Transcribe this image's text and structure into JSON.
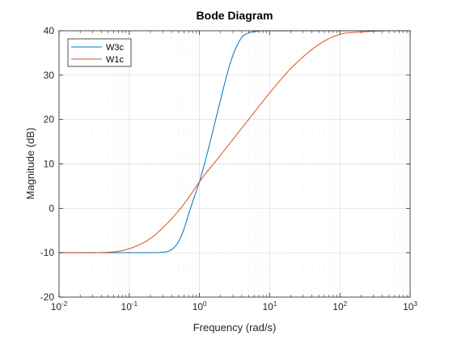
{
  "chart_data": {
    "type": "line",
    "title": "Bode Diagram",
    "xlabel": "Frequency  (rad/s)",
    "ylabel": "Magnitude (dB)",
    "xscale": "log",
    "xlim": [
      0.01,
      1000
    ],
    "ylim": [
      -20,
      40
    ],
    "yticks": [
      -20,
      -10,
      0,
      10,
      20,
      30,
      40
    ],
    "xtick_labels": [
      {
        "base": "10",
        "exp": "-2"
      },
      {
        "base": "10",
        "exp": "-1"
      },
      {
        "base": "10",
        "exp": "0"
      },
      {
        "base": "10",
        "exp": "1"
      },
      {
        "base": "10",
        "exp": "2"
      },
      {
        "base": "10",
        "exp": "3"
      }
    ],
    "grid": true,
    "legend_position": "top-left",
    "series": [
      {
        "name": "W3c",
        "color": "#0072BD",
        "x": [
          0.01,
          0.1,
          0.2,
          0.3,
          0.4,
          0.5,
          0.6,
          0.7,
          0.8,
          1.0,
          1.2,
          1.5,
          2,
          2.5,
          3,
          4,
          5,
          6,
          8,
          10,
          100,
          1000
        ],
        "y": [
          -10,
          -10,
          -10,
          -9.9,
          -9.3,
          -7.6,
          -4.7,
          -1.3,
          1.5,
          6,
          10.5,
          16.5,
          24.5,
          30.5,
          34.5,
          38.5,
          39.5,
          39.8,
          40,
          40,
          40,
          40
        ]
      },
      {
        "name": "W1c",
        "color": "#D95319",
        "x": [
          0.01,
          0.02,
          0.05,
          0.1,
          0.2,
          0.3,
          0.5,
          0.7,
          1.0,
          2,
          5,
          10,
          20,
          50,
          100,
          200,
          500,
          1000
        ],
        "y": [
          -10,
          -10,
          -9.9,
          -9.1,
          -6.8,
          -4.4,
          -0.6,
          2.4,
          6,
          12,
          20,
          26,
          31.5,
          36.9,
          39.2,
          39.7,
          40,
          40
        ]
      }
    ]
  }
}
